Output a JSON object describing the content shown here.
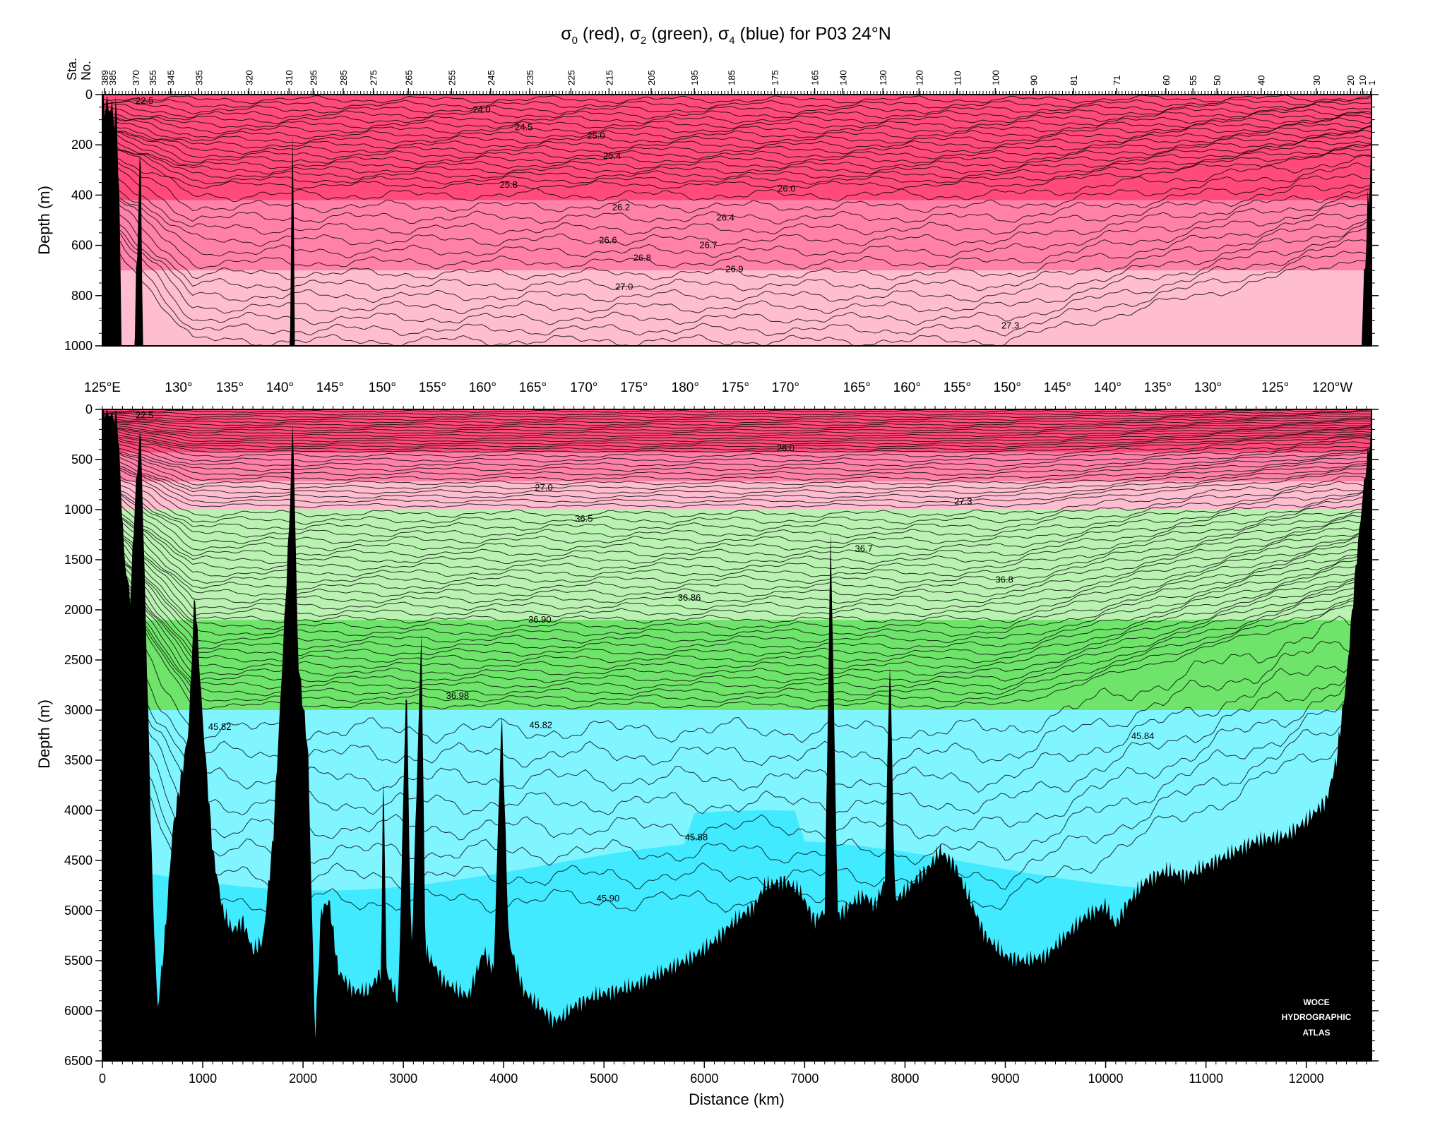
{
  "figure": {
    "title_parts": [
      "σ",
      "0",
      " (red), ",
      "σ",
      "2",
      " (green), ",
      "σ",
      "4",
      " (blue) for P03 24°N"
    ],
    "sta_label": "Sta.",
    "no_label": "No.",
    "watermark": [
      "WOCE",
      "HYDROGRAPHIC",
      "ATLAS"
    ]
  },
  "chart_data": [
    {
      "type": "heatmap",
      "subtype": "section-contour",
      "ylabel": "Depth (m)",
      "ylim": [
        1000,
        0
      ],
      "y_ticks": [
        0,
        200,
        400,
        600,
        800,
        1000
      ],
      "xlim": [
        0,
        12650
      ],
      "stations": [
        {
          "label": "389",
          "km": 20
        },
        {
          "label": "385",
          "km": 100
        },
        {
          "label": "370",
          "km": 330
        },
        {
          "label": "355",
          "km": 500
        },
        {
          "label": "345",
          "km": 680
        },
        {
          "label": "335",
          "km": 960
        },
        {
          "label": "320",
          "km": 1460
        },
        {
          "label": "310",
          "km": 1860
        },
        {
          "label": "295",
          "km": 2100
        },
        {
          "label": "285",
          "km": 2400
        },
        {
          "label": "275",
          "km": 2700
        },
        {
          "label": "265",
          "km": 3050
        },
        {
          "label": "255",
          "km": 3480
        },
        {
          "label": "245",
          "km": 3870
        },
        {
          "label": "235",
          "km": 4260
        },
        {
          "label": "225",
          "km": 4670
        },
        {
          "label": "215",
          "km": 5050
        },
        {
          "label": "205",
          "km": 5470
        },
        {
          "label": "195",
          "km": 5900
        },
        {
          "label": "185",
          "km": 6270
        },
        {
          "label": "175",
          "km": 6700
        },
        {
          "label": "165",
          "km": 7100
        },
        {
          "label": "140",
          "km": 7380
        },
        {
          "label": "130",
          "km": 7780
        },
        {
          "label": "120",
          "km": 8140
        },
        {
          "label": "110",
          "km": 8520
        },
        {
          "label": "100",
          "km": 8900
        },
        {
          "label": "90",
          "km": 9280
        },
        {
          "label": "81",
          "km": 9680
        },
        {
          "label": "71",
          "km": 10110
        },
        {
          "label": "60",
          "km": 10600
        },
        {
          "label": "55",
          "km": 10870
        },
        {
          "label": "50",
          "km": 11110
        },
        {
          "label": "40",
          "km": 11550
        },
        {
          "label": "30",
          "km": 12100
        },
        {
          "label": "20",
          "km": 12440
        },
        {
          "label": "10",
          "km": 12560
        },
        {
          "label": "1",
          "km": 12650
        }
      ],
      "fill_bands": [
        {
          "layer": "sigma0",
          "from": 0,
          "to": 26.0,
          "color": "#ff4a7a"
        },
        {
          "layer": "sigma0",
          "from": 26.0,
          "to": 27.0,
          "color": "#ff80a8"
        },
        {
          "layer": "sigma0",
          "from": 27.0,
          "to": 27.3,
          "color": "#ffbdd0"
        }
      ],
      "contour_labels": [
        {
          "text": "22.5",
          "km": 420,
          "depth": 25
        },
        {
          "text": "24.0",
          "km": 3780,
          "depth": 60
        },
        {
          "text": "24.5",
          "km": 4200,
          "depth": 130
        },
        {
          "text": "25.0",
          "km": 4920,
          "depth": 165
        },
        {
          "text": "25.4",
          "km": 5080,
          "depth": 245
        },
        {
          "text": "25.8",
          "km": 4050,
          "depth": 360
        },
        {
          "text": "26.0",
          "km": 6820,
          "depth": 375
        },
        {
          "text": "26.2",
          "km": 5170,
          "depth": 450
        },
        {
          "text": "26.4",
          "km": 6210,
          "depth": 490
        },
        {
          "text": "26.6",
          "km": 5040,
          "depth": 580
        },
        {
          "text": "26.7",
          "km": 6040,
          "depth": 600
        },
        {
          "text": "26.8",
          "km": 5380,
          "depth": 650
        },
        {
          "text": "26.9",
          "km": 6300,
          "depth": 695
        },
        {
          "text": "27.0",
          "km": 5200,
          "depth": 765
        },
        {
          "text": "27.3",
          "km": 9050,
          "depth": 920
        }
      ]
    },
    {
      "type": "heatmap",
      "subtype": "section-contour",
      "xlabel": "Distance (km)",
      "ylabel": "Depth (m)",
      "xlim": [
        0,
        12650
      ],
      "ylim": [
        6500,
        0
      ],
      "x_ticks": [
        0,
        1000,
        2000,
        3000,
        4000,
        5000,
        6000,
        7000,
        8000,
        9000,
        10000,
        11000,
        12000
      ],
      "y_ticks": [
        0,
        500,
        1000,
        1500,
        2000,
        2500,
        3000,
        3500,
        4000,
        4500,
        5000,
        5500,
        6000,
        6500
      ],
      "longitude_labels": [
        {
          "text": "125°E",
          "km": 0
        },
        {
          "text": "130°",
          "km": 760
        },
        {
          "text": "135°",
          "km": 1270
        },
        {
          "text": "140°",
          "km": 1770
        },
        {
          "text": "145°",
          "km": 2270
        },
        {
          "text": "150°",
          "km": 2790
        },
        {
          "text": "155°",
          "km": 3290
        },
        {
          "text": "160°",
          "km": 3790
        },
        {
          "text": "165°",
          "km": 4290
        },
        {
          "text": "170°",
          "km": 4800
        },
        {
          "text": "175°",
          "km": 5300
        },
        {
          "text": "180°",
          "km": 5810
        },
        {
          "text": "175°",
          "km": 6310
        },
        {
          "text": "170°",
          "km": 6810
        },
        {
          "text": "165°",
          "km": 7520
        },
        {
          "text": "160°",
          "km": 8020
        },
        {
          "text": "155°",
          "km": 8520
        },
        {
          "text": "150°",
          "km": 9020
        },
        {
          "text": "145°",
          "km": 9520
        },
        {
          "text": "140°",
          "km": 10020
        },
        {
          "text": "135°",
          "km": 10520
        },
        {
          "text": "130°",
          "km": 11020
        },
        {
          "text": "125°",
          "km": 11690
        },
        {
          "text": "120°W",
          "km": 12260
        }
      ],
      "fill_bands": [
        {
          "layer": "sigma0",
          "depth_range": [
            0,
            1000
          ],
          "from": 0,
          "to": 26.0,
          "color": "#ff4a7a"
        },
        {
          "layer": "sigma0",
          "depth_range": [
            0,
            1000
          ],
          "from": 26.0,
          "to": 27.0,
          "color": "#ff80a8"
        },
        {
          "layer": "sigma0",
          "depth_range": [
            0,
            1000
          ],
          "from": 27.0,
          "to": 27.3,
          "color": "#ffbdd0"
        },
        {
          "layer": "sigma2",
          "depth_range": [
            1000,
            3000
          ],
          "from": 36.5,
          "to": 36.9,
          "color": "#b9f2b1"
        },
        {
          "layer": "sigma2",
          "depth_range": [
            1000,
            3000
          ],
          "from": 36.9,
          "to": 37.0,
          "color": "#6fe46a"
        },
        {
          "layer": "sigma4",
          "depth_range": [
            3000,
            6500
          ],
          "from": 45.8,
          "to": 45.88,
          "color": "#80f5ff"
        },
        {
          "layer": "sigma4",
          "depth_range": [
            3000,
            6500
          ],
          "from": 45.88,
          "to": 45.95,
          "color": "#41eaff"
        }
      ],
      "contour_labels": [
        {
          "text": "22.5",
          "km": 420,
          "depth": 60
        },
        {
          "text": "26.0",
          "km": 6810,
          "depth": 390
        },
        {
          "text": "27.0",
          "km": 4400,
          "depth": 780
        },
        {
          "text": "27.3",
          "km": 8580,
          "depth": 920
        },
        {
          "text": "36.5",
          "km": 4800,
          "depth": 1090
        },
        {
          "text": "36.7",
          "km": 7590,
          "depth": 1390
        },
        {
          "text": "36.8",
          "km": 8990,
          "depth": 1700
        },
        {
          "text": "36.86",
          "km": 5850,
          "depth": 1880
        },
        {
          "text": "36.90",
          "km": 4360,
          "depth": 2100
        },
        {
          "text": "36.98",
          "km": 3540,
          "depth": 2860
        },
        {
          "text": "45.82",
          "km": 1170,
          "depth": 3170
        },
        {
          "text": "45.82",
          "km": 4370,
          "depth": 3150
        },
        {
          "text": "45.84",
          "km": 10370,
          "depth": 3260
        },
        {
          "text": "45.88",
          "km": 5920,
          "depth": 4270
        },
        {
          "text": "45.90",
          "km": 5040,
          "depth": 4880
        }
      ],
      "bathymetry": [
        [
          0,
          0
        ],
        [
          150,
          100
        ],
        [
          220,
          1500
        ],
        [
          280,
          1900
        ],
        [
          320,
          1000
        ],
        [
          380,
          150
        ],
        [
          440,
          2400
        ],
        [
          500,
          4800
        ],
        [
          550,
          6000
        ],
        [
          620,
          5300
        ],
        [
          700,
          4200
        ],
        [
          780,
          3700
        ],
        [
          860,
          3200
        ],
        [
          920,
          1800
        ],
        [
          1000,
          3100
        ],
        [
          1100,
          4400
        ],
        [
          1200,
          5000
        ],
        [
          1300,
          5200
        ],
        [
          1400,
          5100
        ],
        [
          1500,
          5400
        ],
        [
          1600,
          5300
        ],
        [
          1700,
          4300
        ],
        [
          1780,
          2800
        ],
        [
          1860,
          1200
        ],
        [
          1900,
          60
        ],
        [
          1950,
          2500
        ],
        [
          2050,
          3400
        ],
        [
          2120,
          6300
        ],
        [
          2180,
          5000
        ],
        [
          2260,
          4900
        ],
        [
          2350,
          5600
        ],
        [
          2500,
          5800
        ],
        [
          2650,
          5800
        ],
        [
          2780,
          5600
        ],
        [
          2800,
          3300
        ],
        [
          2830,
          5600
        ],
        [
          2950,
          5900
        ],
        [
          3030,
          2600
        ],
        [
          3080,
          5500
        ],
        [
          3180,
          2200
        ],
        [
          3220,
          5400
        ],
        [
          3400,
          5700
        ],
        [
          3550,
          5800
        ],
        [
          3650,
          5850
        ],
        [
          3700,
          5700
        ],
        [
          3800,
          5400
        ],
        [
          3900,
          5600
        ],
        [
          3980,
          3000
        ],
        [
          4050,
          5300
        ],
        [
          4200,
          5800
        ],
        [
          4300,
          5900
        ],
        [
          4400,
          6000
        ],
        [
          4500,
          6100
        ],
        [
          4600,
          6050
        ],
        [
          4700,
          5950
        ],
        [
          4900,
          5850
        ],
        [
          5100,
          5800
        ],
        [
          5300,
          5750
        ],
        [
          5500,
          5650
        ],
        [
          5700,
          5550
        ],
        [
          5900,
          5450
        ],
        [
          6100,
          5300
        ],
        [
          6300,
          5100
        ],
        [
          6500,
          4950
        ],
        [
          6600,
          4750
        ],
        [
          6800,
          4700
        ],
        [
          6950,
          4800
        ],
        [
          7100,
          5100
        ],
        [
          7200,
          5000
        ],
        [
          7260,
          1200
        ],
        [
          7330,
          5050
        ],
        [
          7500,
          4900
        ],
        [
          7600,
          4850
        ],
        [
          7700,
          4950
        ],
        [
          7800,
          4700
        ],
        [
          7850,
          2400
        ],
        [
          7900,
          4900
        ],
        [
          8100,
          4700
        ],
        [
          8250,
          4550
        ],
        [
          8350,
          4400
        ],
        [
          8500,
          4550
        ],
        [
          8650,
          4900
        ],
        [
          8800,
          5250
        ],
        [
          9000,
          5450
        ],
        [
          9200,
          5500
        ],
        [
          9400,
          5450
        ],
        [
          9600,
          5250
        ],
        [
          9800,
          5050
        ],
        [
          10000,
          4950
        ],
        [
          10100,
          5150
        ],
        [
          10200,
          4950
        ],
        [
          10400,
          4700
        ],
        [
          10600,
          4600
        ],
        [
          10800,
          4650
        ],
        [
          11000,
          4550
        ],
        [
          11200,
          4450
        ],
        [
          11500,
          4300
        ],
        [
          11800,
          4250
        ],
        [
          12000,
          4100
        ],
        [
          12200,
          3900
        ],
        [
          12300,
          3500
        ],
        [
          12400,
          2700
        ],
        [
          12500,
          1500
        ],
        [
          12580,
          700
        ],
        [
          12650,
          200
        ]
      ]
    }
  ]
}
